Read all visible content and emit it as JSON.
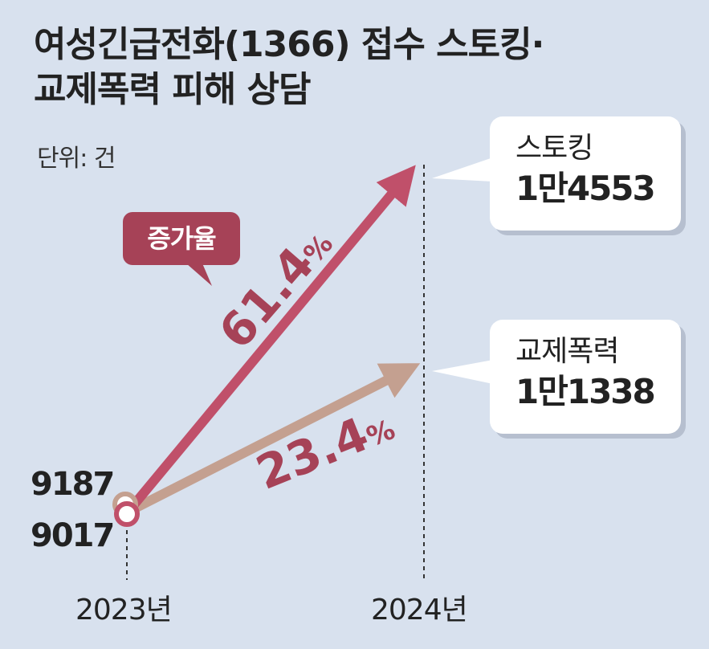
{
  "title_line1": "여성긴급전화(1366) 접수 스토킹·",
  "title_line2": "교제폭력 피해 상담",
  "unit": "단위: 건",
  "badge": "증가율",
  "chart_data": {
    "type": "line",
    "x": [
      "2023년",
      "2024년"
    ],
    "series": [
      {
        "name": "스토킹",
        "values": [
          9017,
          14553
        ],
        "value_labels": [
          "9017",
          "1만4553"
        ],
        "growth": "61.4%",
        "color": "#c0506a"
      },
      {
        "name": "교제폭력",
        "values": [
          9187,
          11338
        ],
        "value_labels": [
          "9187",
          "1만1338"
        ],
        "growth": "23.4%",
        "color": "#c4a090"
      }
    ]
  },
  "colors": {
    "background": "#d8e1ee",
    "badge": "#a64257",
    "growth_text": "#a64257"
  }
}
